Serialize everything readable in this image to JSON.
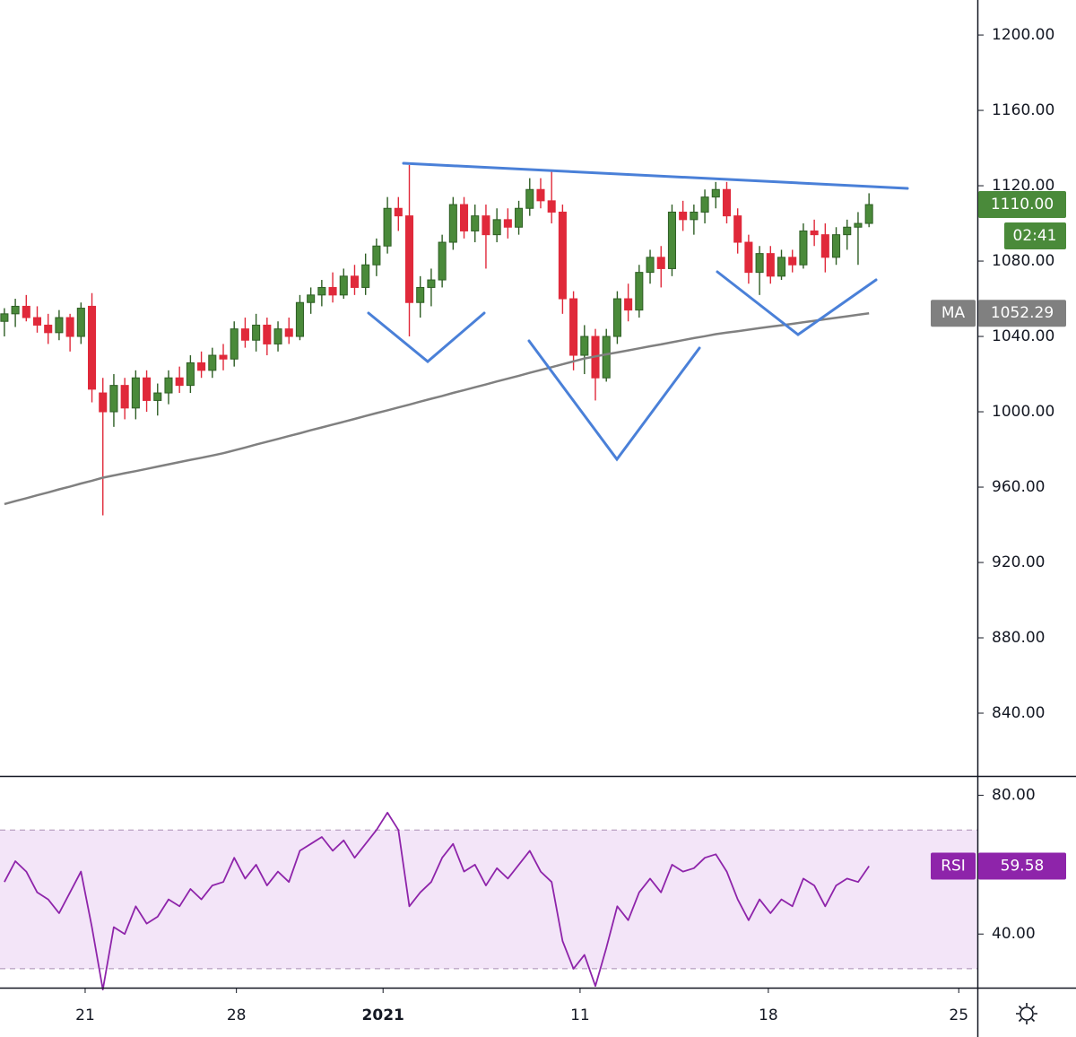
{
  "chart_data": [
    {
      "type": "candlestick",
      "xlim": [
        -0.4,
        88.9
      ],
      "xticks": [
        {
          "value": 7.38,
          "label": "21"
        },
        {
          "value": 21.2,
          "label": "28"
        },
        {
          "value": 34.6,
          "label": "2021"
        },
        {
          "value": 52.6,
          "label": "11"
        },
        {
          "value": 69.8,
          "label": "18"
        },
        {
          "value": 87.2,
          "label": "25"
        }
      ],
      "ylim": [
        808.1,
        1218.6
      ],
      "yticks": [
        {
          "value": 840,
          "label": "840.00"
        },
        {
          "value": 880,
          "label": "880.00"
        },
        {
          "value": 920,
          "label": "920.00"
        },
        {
          "value": 960,
          "label": "960.00"
        },
        {
          "value": 1000,
          "label": "1000.00"
        },
        {
          "value": 1040,
          "label": "1040.00"
        },
        {
          "value": 1080,
          "label": "1080.00"
        },
        {
          "value": 1120,
          "label": "1120.00"
        },
        {
          "value": 1160,
          "label": "1160.00"
        },
        {
          "value": 1200,
          "label": "1200.00"
        }
      ],
      "up_color": "#4a8a3a",
      "down_color": "#e0293a",
      "candles": [
        [
          1048,
          1055,
          1040,
          1052
        ],
        [
          1052,
          1060,
          1045,
          1056
        ],
        [
          1056,
          1062,
          1048,
          1050
        ],
        [
          1050,
          1056,
          1042,
          1046
        ],
        [
          1046,
          1052,
          1036,
          1042
        ],
        [
          1042,
          1054,
          1038,
          1050
        ],
        [
          1050,
          1052,
          1032,
          1040
        ],
        [
          1040,
          1058,
          1036,
          1055
        ],
        [
          1056,
          1063,
          1005,
          1012
        ],
        [
          1010,
          1018,
          945,
          1000
        ],
        [
          1000,
          1020,
          992,
          1014
        ],
        [
          1014,
          1018,
          996,
          1002
        ],
        [
          1002,
          1022,
          996,
          1018
        ],
        [
          1018,
          1022,
          1000,
          1006
        ],
        [
          1006,
          1015,
          998,
          1010
        ],
        [
          1010,
          1022,
          1004,
          1018
        ],
        [
          1018,
          1024,
          1010,
          1014
        ],
        [
          1014,
          1030,
          1010,
          1026
        ],
        [
          1026,
          1032,
          1018,
          1022
        ],
        [
          1022,
          1034,
          1018,
          1030
        ],
        [
          1030,
          1036,
          1022,
          1028
        ],
        [
          1028,
          1048,
          1024,
          1044
        ],
        [
          1044,
          1050,
          1034,
          1038
        ],
        [
          1038,
          1052,
          1032,
          1046
        ],
        [
          1046,
          1050,
          1030,
          1036
        ],
        [
          1036,
          1048,
          1032,
          1044
        ],
        [
          1044,
          1050,
          1036,
          1040
        ],
        [
          1040,
          1062,
          1038,
          1058
        ],
        [
          1058,
          1066,
          1052,
          1062
        ],
        [
          1062,
          1070,
          1056,
          1066
        ],
        [
          1066,
          1074,
          1058,
          1062
        ],
        [
          1062,
          1076,
          1060,
          1072
        ],
        [
          1072,
          1078,
          1062,
          1066
        ],
        [
          1066,
          1084,
          1062,
          1078
        ],
        [
          1078,
          1092,
          1072,
          1088
        ],
        [
          1088,
          1114,
          1084,
          1108
        ],
        [
          1108,
          1114,
          1096,
          1104
        ],
        [
          1104,
          1131,
          1040,
          1058
        ],
        [
          1058,
          1072,
          1050,
          1066
        ],
        [
          1066,
          1076,
          1056,
          1070
        ],
        [
          1070,
          1094,
          1066,
          1090
        ],
        [
          1090,
          1114,
          1086,
          1110
        ],
        [
          1110,
          1114,
          1092,
          1096
        ],
        [
          1096,
          1110,
          1090,
          1104
        ],
        [
          1104,
          1110,
          1076,
          1094
        ],
        [
          1094,
          1108,
          1090,
          1102
        ],
        [
          1102,
          1108,
          1092,
          1098
        ],
        [
          1098,
          1112,
          1094,
          1108
        ],
        [
          1108,
          1124,
          1104,
          1118
        ],
        [
          1118,
          1124,
          1108,
          1112
        ],
        [
          1112,
          1128,
          1100,
          1106
        ],
        [
          1106,
          1110,
          1052,
          1060
        ],
        [
          1060,
          1064,
          1022,
          1030
        ],
        [
          1030,
          1046,
          1020,
          1040
        ],
        [
          1040,
          1044,
          1006,
          1018
        ],
        [
          1018,
          1044,
          1016,
          1040
        ],
        [
          1040,
          1064,
          1036,
          1060
        ],
        [
          1060,
          1068,
          1048,
          1054
        ],
        [
          1054,
          1078,
          1050,
          1074
        ],
        [
          1074,
          1086,
          1068,
          1082
        ],
        [
          1082,
          1088,
          1066,
          1076
        ],
        [
          1076,
          1110,
          1072,
          1106
        ],
        [
          1106,
          1112,
          1096,
          1102
        ],
        [
          1102,
          1110,
          1094,
          1106
        ],
        [
          1106,
          1118,
          1100,
          1114
        ],
        [
          1114,
          1122,
          1108,
          1118
        ],
        [
          1118,
          1122,
          1100,
          1104
        ],
        [
          1104,
          1108,
          1084,
          1090
        ],
        [
          1090,
          1094,
          1068,
          1074
        ],
        [
          1074,
          1088,
          1062,
          1084
        ],
        [
          1084,
          1088,
          1068,
          1072
        ],
        [
          1072,
          1086,
          1070,
          1082
        ],
        [
          1082,
          1086,
          1074,
          1078
        ],
        [
          1078,
          1100,
          1076,
          1096
        ],
        [
          1096,
          1102,
          1088,
          1094
        ],
        [
          1094,
          1100,
          1074,
          1082
        ],
        [
          1082,
          1098,
          1078,
          1094
        ],
        [
          1094,
          1102,
          1086,
          1098
        ],
        [
          1098,
          1106,
          1078,
          1100
        ],
        [
          1100,
          1116,
          1098,
          1110
        ]
      ],
      "series": [
        {
          "name": "MA",
          "color": "#808080",
          "last_value_label": "1052.29",
          "values": [
            951,
            952.6,
            954.1,
            955.7,
            957.2,
            958.8,
            960.3,
            961.9,
            963.4,
            965,
            966.2,
            967.4,
            968.5,
            969.7,
            970.9,
            972.1,
            973.3,
            974.5,
            975.6,
            976.8,
            978,
            979.5,
            981,
            982.6,
            984.1,
            985.6,
            987.1,
            988.6,
            990.2,
            991.7,
            993.2,
            994.7,
            996.2,
            997.8,
            999.3,
            1000.8,
            1002.3,
            1003.8,
            1005.4,
            1006.9,
            1008.4,
            1010,
            1011.5,
            1013,
            1014.5,
            1016.1,
            1017.6,
            1019.1,
            1020.7,
            1022.2,
            1023.7,
            1025.2,
            1026.8,
            1028.3,
            1029.4,
            1030.5,
            1031.5,
            1032.6,
            1033.7,
            1034.8,
            1035.8,
            1036.9,
            1038,
            1039.1,
            1040.1,
            1041.2,
            1042,
            1042.8,
            1043.6,
            1044.4,
            1045.2,
            1045.9,
            1046.7,
            1047.5,
            1048.3,
            1049.1,
            1049.9,
            1050.7,
            1051.5,
            1052.29
          ]
        }
      ],
      "last_price": {
        "value": 1110,
        "label": "1110.00"
      },
      "countdown": "02:41"
    },
    {
      "type": "line",
      "ylim": [
        24.8,
        84.8
      ],
      "yticks": [
        {
          "value": 40,
          "label": "40.00"
        },
        {
          "value": 80,
          "label": "80.00"
        }
      ],
      "bands": [
        30,
        70
      ],
      "band_color": "#f3e5f8",
      "series": [
        {
          "name": "RSI",
          "color": "#8e24aa",
          "last_value_label": "59.58",
          "values": [
            55,
            61,
            58,
            52,
            50,
            46,
            52,
            58,
            42,
            24,
            42,
            40,
            48,
            43,
            45,
            50,
            48,
            53,
            50,
            54,
            55,
            62,
            56,
            60,
            54,
            58,
            55,
            64,
            66,
            68,
            64,
            67,
            62,
            66,
            70,
            75,
            70,
            48,
            52,
            55,
            62,
            66,
            58,
            60,
            54,
            59,
            56,
            60,
            64,
            58,
            55,
            38,
            30,
            34,
            25,
            36,
            48,
            44,
            52,
            56,
            52,
            60,
            58,
            59,
            62,
            63,
            58,
            50,
            44,
            50,
            46,
            50,
            48,
            56,
            54,
            48,
            54,
            56,
            55,
            59.58
          ]
        }
      ]
    }
  ]
}
